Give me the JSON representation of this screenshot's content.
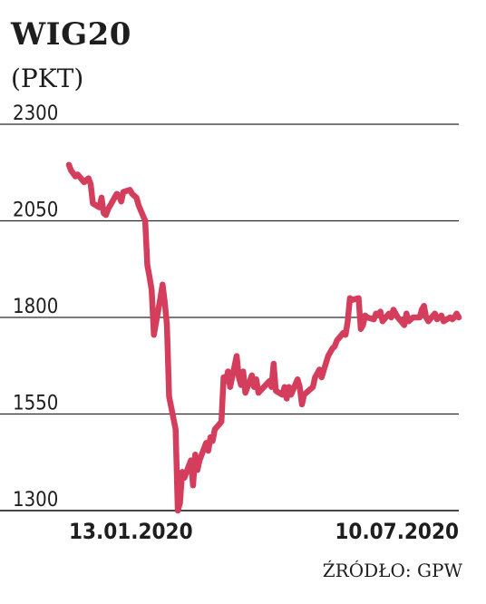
{
  "chart_data": {
    "type": "line",
    "title": "WIG20",
    "unit": "(PKT)",
    "source": "ŹRÓDŁO: GPW",
    "xlabel": "",
    "ylabel": "",
    "ylim": [
      1300,
      2300
    ],
    "y_ticks": [
      "2300",
      "2050",
      "1800",
      "1550",
      "1300"
    ],
    "x_tick_labels": [
      "13.01.2020",
      "10.07.2020"
    ],
    "x_range": [
      "2020-01-13",
      "2020-07-10"
    ],
    "grid": true,
    "line_color": "#d43d5b",
    "series": [
      {
        "x": [
          "2020-01-13",
          "2020-01-14",
          "2020-01-16",
          "2020-01-17",
          "2020-01-20",
          "2020-01-22",
          "2020-01-23",
          "2020-01-24",
          "2020-01-27",
          "2020-01-28",
          "2020-01-29",
          "2020-01-30",
          "2020-01-31",
          "2020-02-03",
          "2020-02-04",
          "2020-02-05",
          "2020-02-06",
          "2020-02-07",
          "2020-02-10",
          "2020-02-11",
          "2020-02-12",
          "2020-02-13",
          "2020-02-14",
          "2020-02-17",
          "2020-02-18",
          "2020-02-19",
          "2020-02-20",
          "2020-02-21",
          "2020-02-24",
          "2020-02-25",
          "2020-02-26",
          "2020-02-27",
          "2020-02-28",
          "2020-03-02",
          "2020-03-03",
          "2020-03-04",
          "2020-03-05",
          "2020-03-06",
          "2020-03-09",
          "2020-03-10",
          "2020-03-11",
          "2020-03-12",
          "2020-03-13",
          "2020-03-16",
          "2020-03-17",
          "2020-03-18",
          "2020-03-19",
          "2020-03-20",
          "2020-03-23",
          "2020-03-24",
          "2020-03-25",
          "2020-03-26",
          "2020-03-27",
          "2020-03-30",
          "2020-03-31",
          "2020-04-01",
          "2020-04-02",
          "2020-04-03",
          "2020-04-06",
          "2020-04-07",
          "2020-04-08",
          "2020-04-09",
          "2020-04-14",
          "2020-04-15",
          "2020-04-16",
          "2020-04-17",
          "2020-04-20",
          "2020-04-21",
          "2020-04-22",
          "2020-04-23",
          "2020-04-24",
          "2020-04-27",
          "2020-04-28",
          "2020-04-29",
          "2020-04-30",
          "2020-05-04",
          "2020-05-05",
          "2020-05-06",
          "2020-05-07",
          "2020-05-08",
          "2020-05-11",
          "2020-05-12",
          "2020-05-13",
          "2020-05-14",
          "2020-05-15",
          "2020-05-18",
          "2020-05-19",
          "2020-05-20",
          "2020-05-21",
          "2020-05-22",
          "2020-05-25",
          "2020-05-26",
          "2020-05-27",
          "2020-05-28",
          "2020-05-29",
          "2020-06-01",
          "2020-06-02",
          "2020-06-03",
          "2020-06-04",
          "2020-06-05",
          "2020-06-08",
          "2020-06-09",
          "2020-06-10",
          "2020-06-12",
          "2020-06-15",
          "2020-06-16",
          "2020-06-17",
          "2020-06-18",
          "2020-06-19",
          "2020-06-22",
          "2020-06-23",
          "2020-06-24",
          "2020-06-25",
          "2020-06-26",
          "2020-06-29",
          "2020-06-30",
          "2020-07-01",
          "2020-07-02",
          "2020-07-03",
          "2020-07-06",
          "2020-07-07",
          "2020-07-08",
          "2020-07-09",
          "2020-07-10"
        ],
        "values": [
          2195,
          2180,
          2165,
          2170,
          2150,
          2160,
          2145,
          2095,
          2085,
          2110,
          2070,
          2065,
          2080,
          2110,
          2120,
          2115,
          2100,
          2125,
          2130,
          2120,
          2115,
          2110,
          2090,
          2050,
          1935,
          1905,
          1870,
          1755,
          1850,
          1885,
          1840,
          1780,
          1595,
          1510,
          1300,
          1320,
          1400,
          1385,
          1430,
          1365,
          1445,
          1405,
          1430,
          1475,
          1455,
          1490,
          1480,
          1510,
          1530,
          1645,
          1635,
          1660,
          1620,
          1700,
          1645,
          1625,
          1660,
          1605,
          1650,
          1620,
          1640,
          1605,
          1635,
          1620,
          1680,
          1610,
          1600,
          1620,
          1590,
          1620,
          1600,
          1640,
          1620,
          1575,
          1600,
          1620,
          1645,
          1655,
          1665,
          1645,
          1700,
          1710,
          1720,
          1725,
          1740,
          1760,
          1755,
          1790,
          1850,
          1845,
          1850,
          1770,
          1780,
          1805,
          1800,
          1795,
          1810,
          1805,
          1815,
          1790,
          1810,
          1800,
          1820,
          1800,
          1780,
          1810,
          1790,
          1795,
          1800,
          1800,
          1820,
          1830,
          1800,
          1790,
          1810,
          1795,
          1800,
          1805,
          1790,
          1800,
          1795,
          1800,
          1810,
          1800
        ]
      }
    ]
  }
}
